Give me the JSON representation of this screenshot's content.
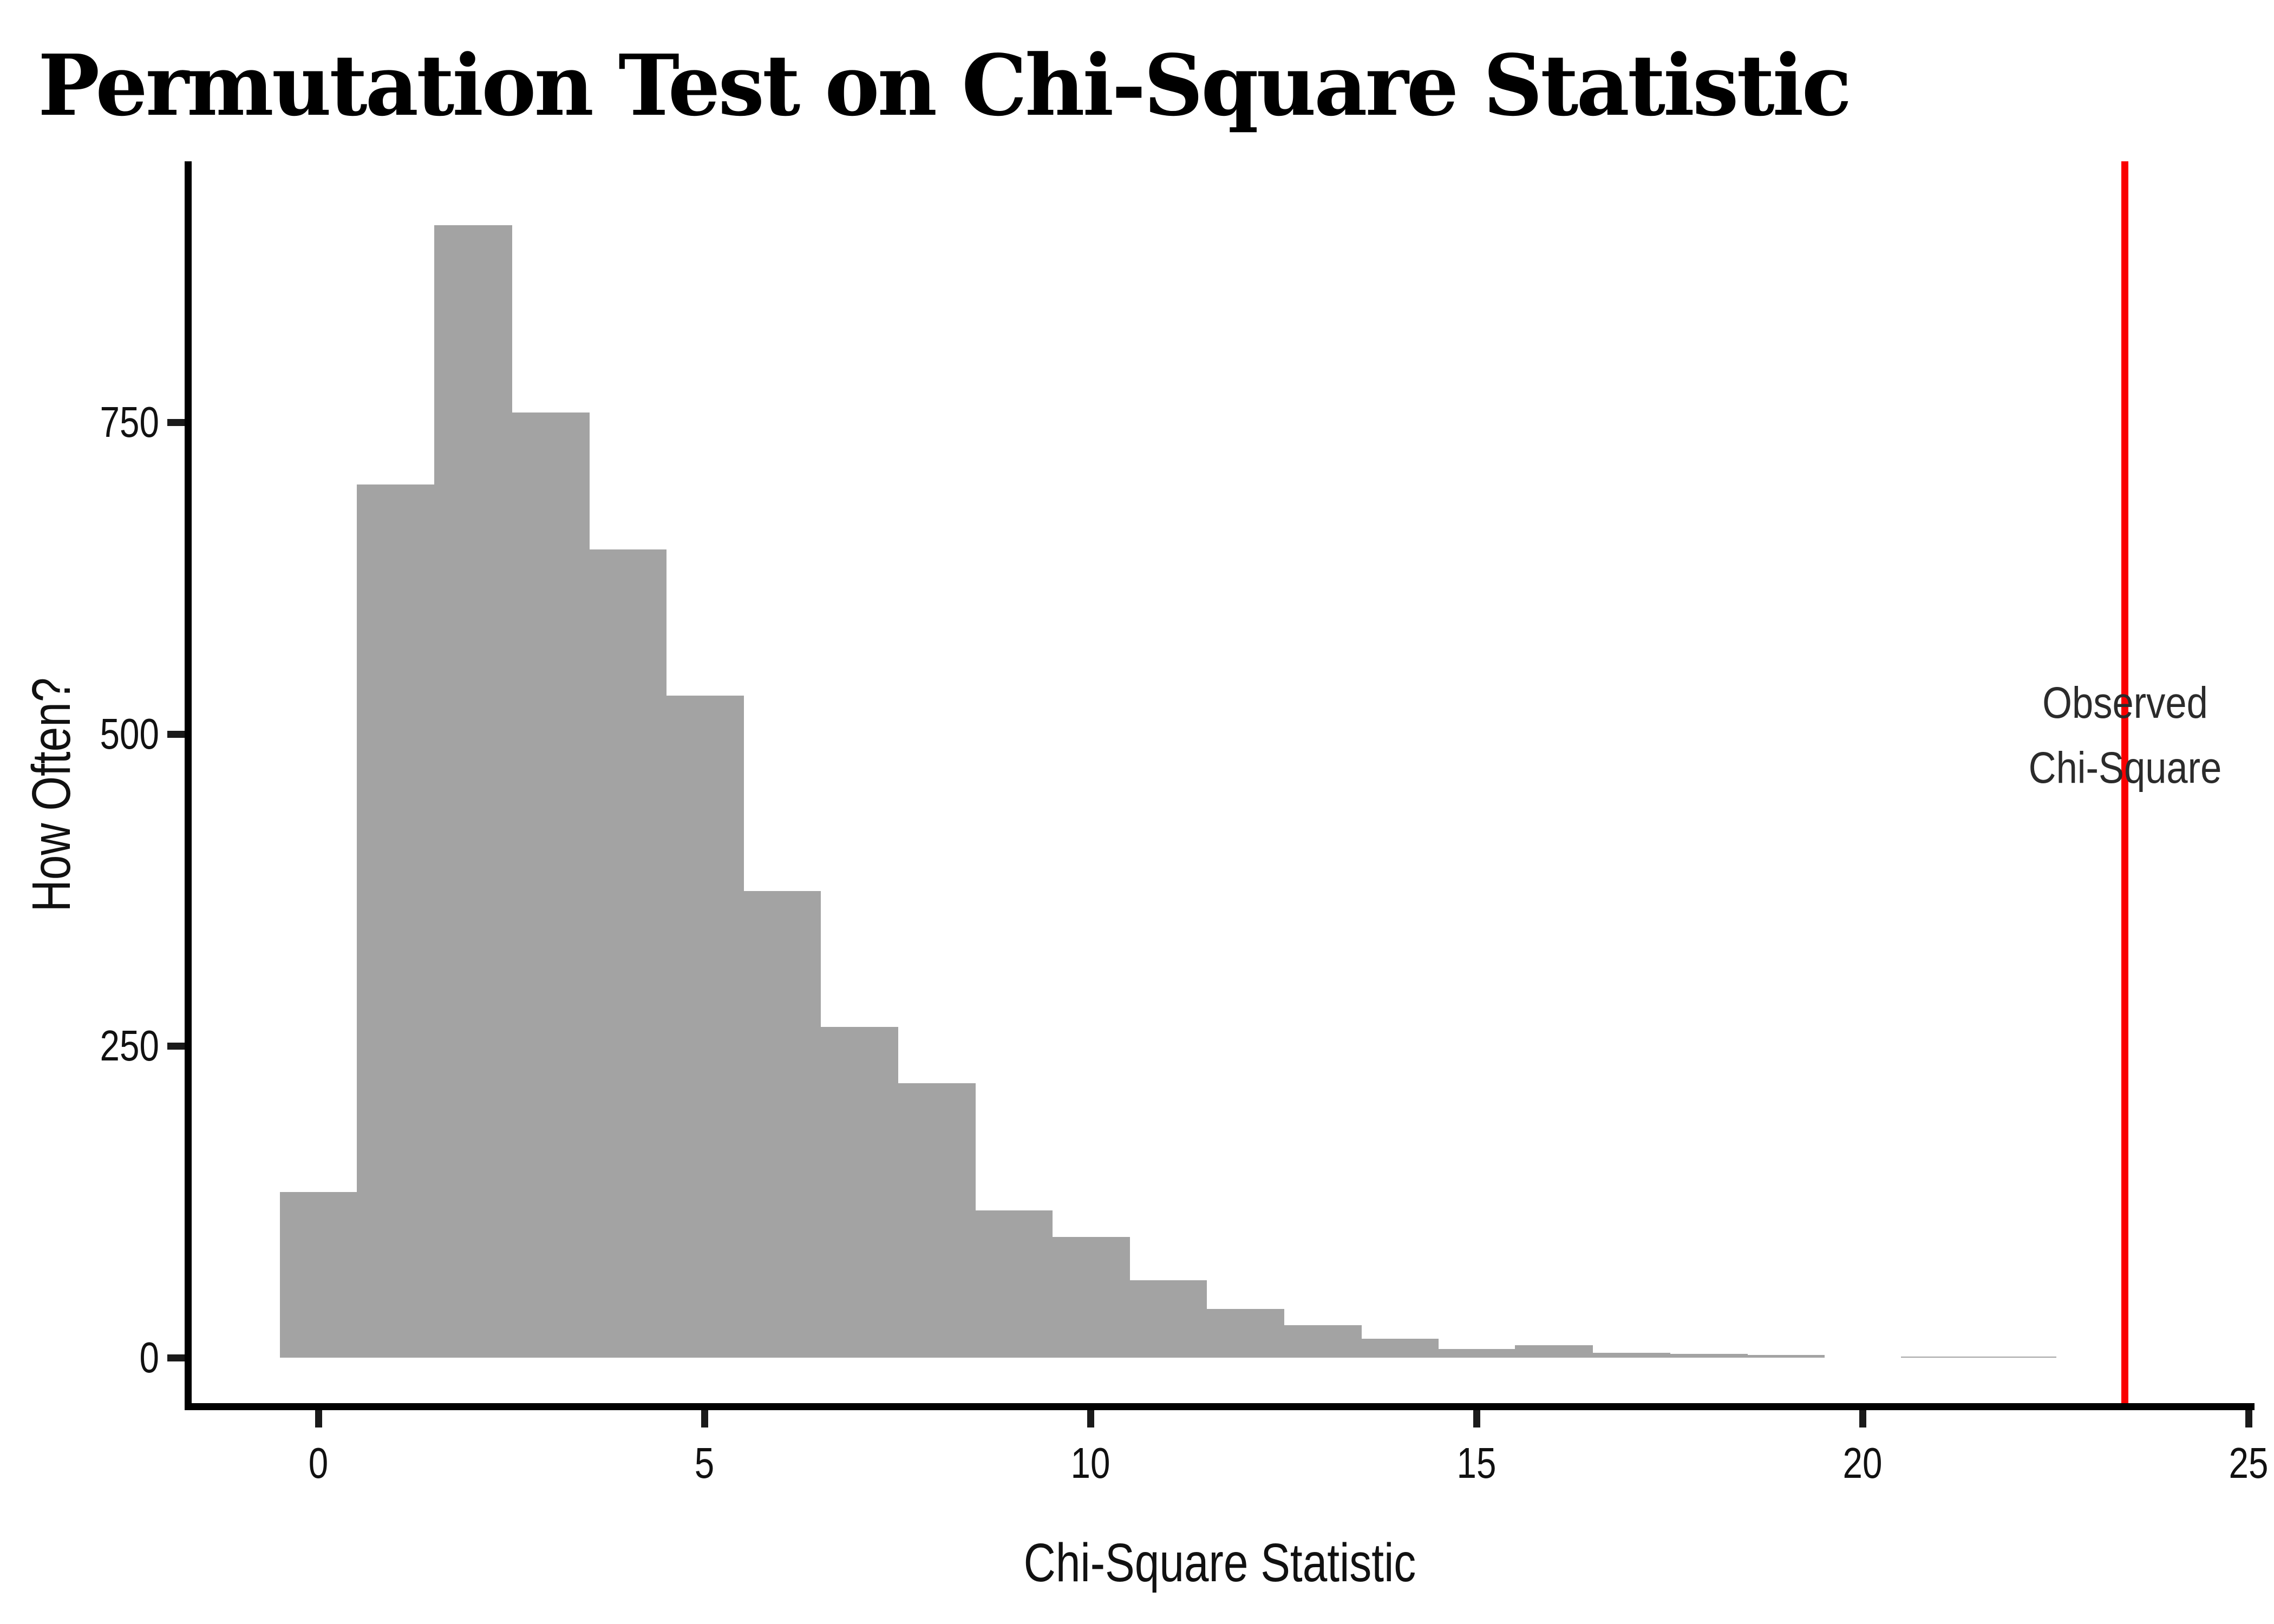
{
  "page": {
    "background": "#ffffff"
  },
  "chart_data": {
    "type": "bar",
    "subtype": "histogram",
    "title": "Permutation Test on Chi-Square Statistic",
    "xlabel": "Chi-Square Statistic",
    "ylabel": "How Often?",
    "x_ticks": [
      0,
      5,
      10,
      15,
      20,
      25
    ],
    "y_ticks": [
      0,
      250,
      500,
      750
    ],
    "xlim": [
      -1.73,
      25.33
    ],
    "ylim": [
      0,
      955
    ],
    "grid": false,
    "legend": false,
    "bar_color": "#a3a3a3",
    "axis_color": "#000000",
    "tick_text_color": "#111111",
    "bin_width": 1,
    "bin_centers": [
      0,
      1,
      2,
      3,
      4,
      5,
      6,
      7,
      8,
      9,
      10,
      11,
      12,
      13,
      14,
      15,
      16,
      17,
      18,
      19,
      20,
      21,
      22
    ],
    "counts": [
      133,
      700,
      908,
      758,
      648,
      531,
      374,
      265,
      220,
      118,
      97,
      62,
      39,
      26,
      15,
      7,
      10,
      4,
      3,
      2,
      0,
      1,
      1
    ],
    "observed_line": {
      "x": 23.4,
      "color": "#fa0000",
      "label": [
        "Observed",
        "Chi-Square"
      ],
      "label_color": "#2b2b2b"
    }
  }
}
